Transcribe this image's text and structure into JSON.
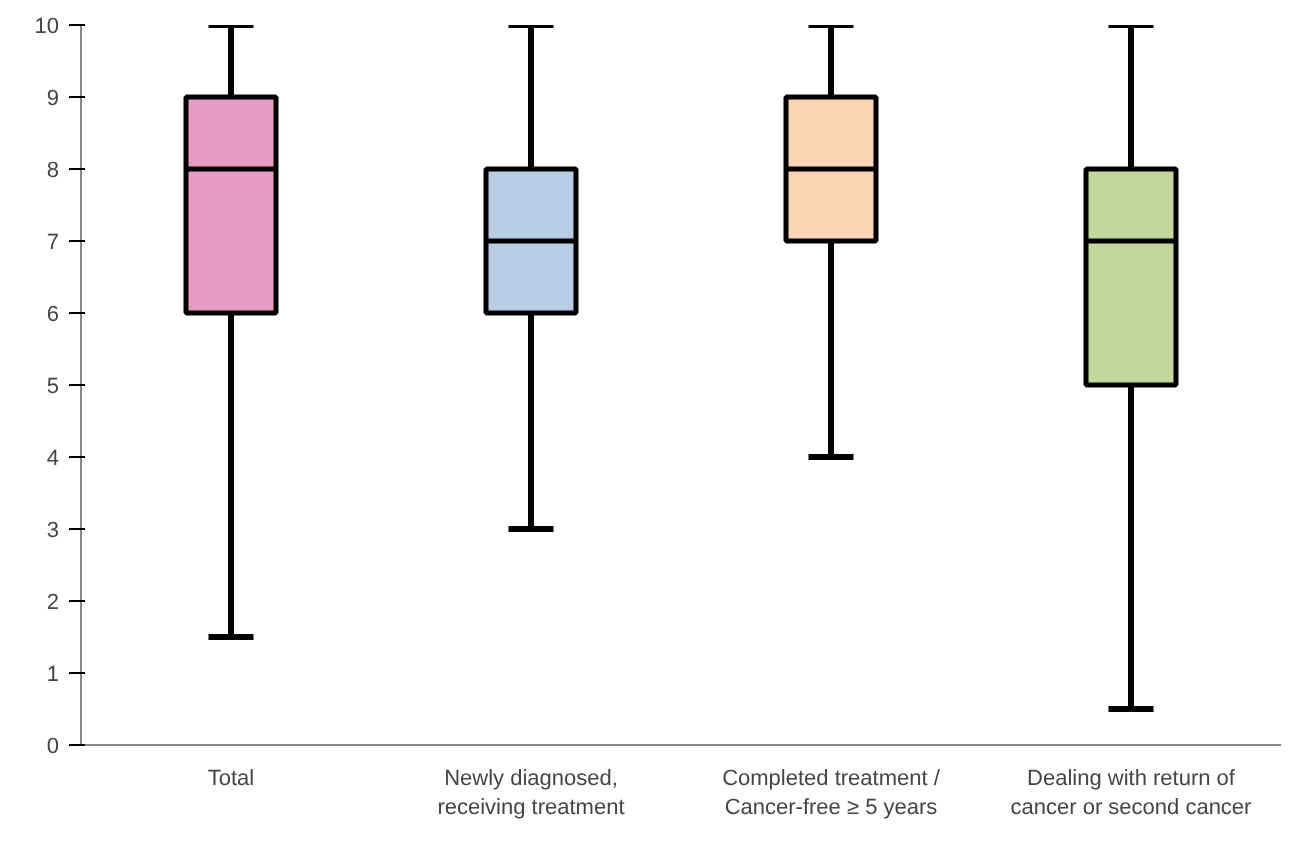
{
  "chart_data": {
    "type": "box",
    "categories": [
      "Total",
      "Newly diagnosed,\nreceiving treatment",
      "Completed treatment /\nCancer-free ≥ 5 years",
      "Dealing with return of\ncancer or second cancer"
    ],
    "boxes": [
      {
        "low": 1.5,
        "q1": 6,
        "median": 8,
        "q3": 9,
        "high": 10
      },
      {
        "low": 3,
        "q1": 6,
        "median": 7,
        "q3": 8,
        "high": 10
      },
      {
        "low": 4,
        "q1": 7,
        "median": 8,
        "q3": 9,
        "high": 10
      },
      {
        "low": 0.5,
        "q1": 5,
        "median": 7,
        "q3": 8,
        "high": 10
      }
    ],
    "colors": [
      "#e89cc4",
      "#b8cce4",
      "#fcd5b4",
      "#c3d69b"
    ],
    "ylim": [
      0,
      10
    ],
    "yticks": [
      0,
      1,
      2,
      3,
      4,
      5,
      6,
      7,
      8,
      9,
      10
    ],
    "grid": false
  }
}
